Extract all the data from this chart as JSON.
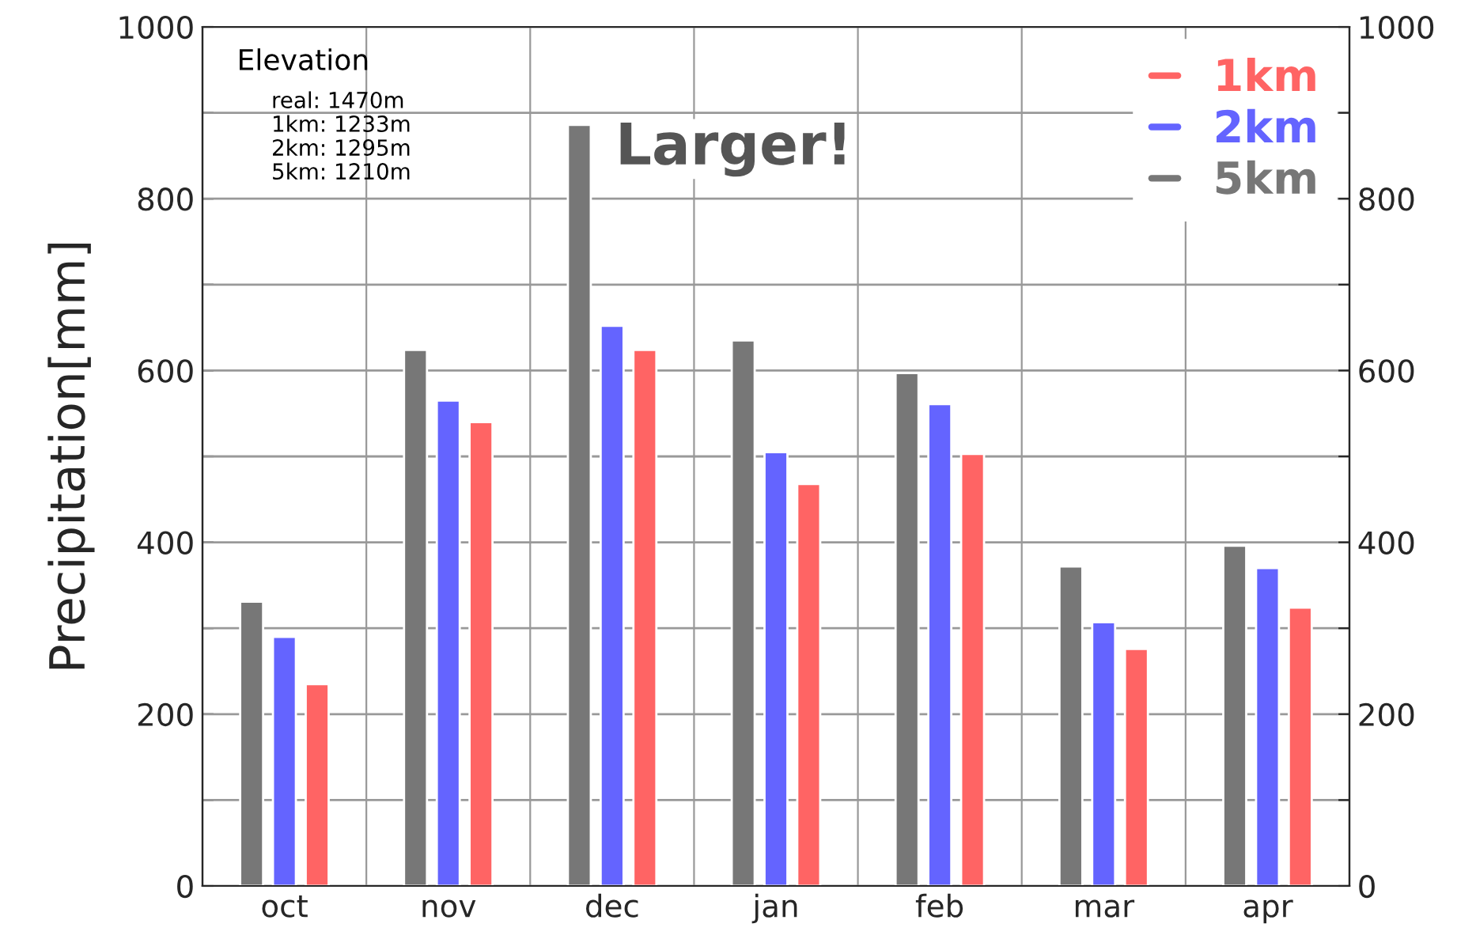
{
  "chart_data": {
    "type": "bar",
    "ylabel": "Precipitation[mm]",
    "categories": [
      "oct",
      "nov",
      "dec",
      "jan",
      "feb",
      "mar",
      "apr"
    ],
    "series": [
      {
        "name": "5km",
        "color": "#777777",
        "values": [
          331,
          624,
          886,
          635,
          597,
          372,
          396
        ]
      },
      {
        "name": "2km",
        "color": "#6464ff",
        "values": [
          290,
          565,
          652,
          505,
          561,
          307,
          370
        ]
      },
      {
        "name": "1km",
        "color": "#ff6464",
        "values": [
          235,
          540,
          624,
          468,
          503,
          276,
          324
        ]
      }
    ],
    "ylim": [
      0,
      1000
    ],
    "yticks": [
      0,
      {
        "value": 100,
        "label": null
      },
      200,
      {
        "value": 300,
        "label": null
      },
      400,
      {
        "value": 500,
        "label": null
      },
      600,
      {
        "value": 700,
        "label": null
      },
      800,
      {
        "value": 900,
        "label": null
      },
      1000
    ],
    "y2lim": [
      0,
      1000
    ],
    "y2ticks": [
      0,
      {
        "value": 100,
        "label": null
      },
      200,
      {
        "value": 300,
        "label": null
      },
      400,
      {
        "value": 500,
        "label": null
      },
      600,
      {
        "value": 700,
        "label": null
      },
      800,
      {
        "value": 900,
        "label": null
      },
      1000
    ],
    "annotations": [
      "Elevation",
      "real: 1470m\n1km: 1233m\n2km: 1295m\n5km: 1210m",
      "Larger!"
    ],
    "grid": true,
    "legend": "top right"
  }
}
